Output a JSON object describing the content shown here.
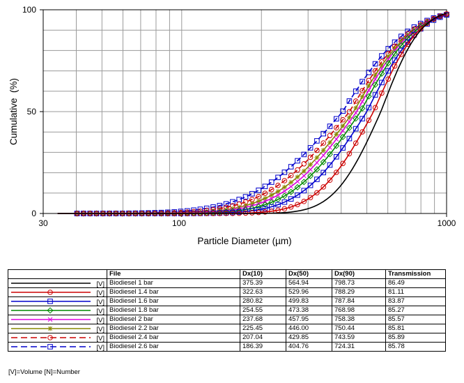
{
  "chart_data": {
    "type": "line",
    "xlabel": "Particle Diameter (µm)",
    "ylabel": "Cumulative  (%)",
    "xscale": "log",
    "xlim": [
      30,
      1000
    ],
    "ylim": [
      0,
      100
    ],
    "x_ticks": [
      "30",
      "100",
      "1000"
    ],
    "y_ticks": [
      "0",
      "50",
      "100"
    ],
    "grid": true,
    "series": [
      {
        "name": "Biodiesel 1 bar",
        "color": "#000000",
        "dash": "solid",
        "marker": "none",
        "d10": 375.39,
        "d50": 564.94,
        "d90": 798.73
      },
      {
        "name": "Biodiesel 1.4 bar",
        "color": "#cc0000",
        "dash": "solid",
        "marker": "circle",
        "d10": 322.63,
        "d50": 529.96,
        "d90": 788.29
      },
      {
        "name": "Biodiesel 1.6 bar",
        "color": "#0000cc",
        "dash": "solid",
        "marker": "square",
        "d10": 280.82,
        "d50": 499.83,
        "d90": 787.84
      },
      {
        "name": "Biodiesel 1.8 bar",
        "color": "#008800",
        "dash": "solid",
        "marker": "diamond",
        "d10": 254.55,
        "d50": 473.38,
        "d90": 768.98
      },
      {
        "name": "Biodiesel 2 bar",
        "color": "#dd00dd",
        "dash": "solid",
        "marker": "x",
        "d10": 237.68,
        "d50": 457.95,
        "d90": 758.38
      },
      {
        "name": "Biodiesel 2.2 bar",
        "color": "#888800",
        "dash": "solid",
        "marker": "star",
        "d10": 225.45,
        "d50": 446.0,
        "d90": 750.44
      },
      {
        "name": "Biodiesel 2.4 bar",
        "color": "#cc0000",
        "dash": "dashed",
        "marker": "circle",
        "d10": 207.04,
        "d50": 429.85,
        "d90": 743.59
      },
      {
        "name": "Biodiesel 2.6 bar",
        "color": "#0000cc",
        "dash": "dashed",
        "marker": "square",
        "d10": 186.39,
        "d50": 404.76,
        "d90": 724.31
      }
    ]
  },
  "table": {
    "headers": [
      "File",
      "Dx(10)",
      "Dx(50)",
      "Dx(90)",
      "Transmission"
    ],
    "rows": [
      {
        "tag": "[V]",
        "file": "Biodiesel 1 bar",
        "dx10": "375.39",
        "dx50": "564.94",
        "dx90": "798.73",
        "trans": "86.49"
      },
      {
        "tag": "[V]",
        "file": "Biodiesel 1.4 bar",
        "dx10": "322.63",
        "dx50": "529.96",
        "dx90": "788.29",
        "trans": "81.11"
      },
      {
        "tag": "[V]",
        "file": "Biodiesel 1.6 bar",
        "dx10": "280.82",
        "dx50": "499.83",
        "dx90": "787.84",
        "trans": "83.87"
      },
      {
        "tag": "[V]",
        "file": "Biodiesel 1.8 bar",
        "dx10": "254.55",
        "dx50": "473.38",
        "dx90": "768.98",
        "trans": "85.27"
      },
      {
        "tag": "[V]",
        "file": "Biodiesel 2 bar",
        "dx10": "237.68",
        "dx50": "457.95",
        "dx90": "758.38",
        "trans": "85.57"
      },
      {
        "tag": "[V]",
        "file": "Biodiesel 2.2 bar",
        "dx10": "225.45",
        "dx50": "446.00",
        "dx90": "750.44",
        "trans": "85.81"
      },
      {
        "tag": "[V]",
        "file": "Biodiesel 2.4 bar",
        "dx10": "207.04",
        "dx50": "429.85",
        "dx90": "743.59",
        "trans": "85.89"
      },
      {
        "tag": "[V]",
        "file": "Biodiesel 2.6 bar",
        "dx10": "186.39",
        "dx50": "404.76",
        "dx90": "724.31",
        "trans": "85.78"
      }
    ],
    "footnote": "[V]=Volume [N]=Number"
  }
}
